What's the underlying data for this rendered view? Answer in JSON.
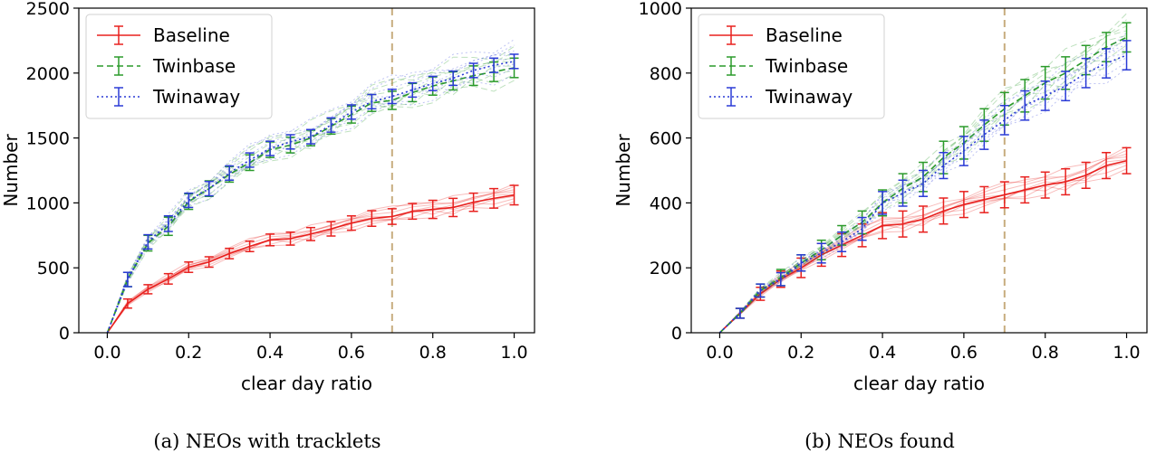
{
  "figure": {
    "captions": [
      "(a) NEOs with tracklets",
      "(b) NEOs found"
    ]
  },
  "colors": {
    "Baseline": "#e8201e",
    "Twinbase": "#2a9a2a",
    "Twinaway": "#2a3ad6",
    "vline": "#c8ad7f"
  },
  "chart_data": [
    {
      "type": "line",
      "xlabel": "clear day ratio",
      "ylabel": "Number",
      "xlim": [
        -0.07,
        1.05
      ],
      "ylim": [
        0,
        2500
      ],
      "xticks": [
        0.0,
        0.2,
        0.4,
        0.6,
        0.8,
        1.0
      ],
      "xtick_labels": [
        "0.0",
        "0.2",
        "0.4",
        "0.6",
        "0.8",
        "1.0"
      ],
      "yticks": [
        0,
        500,
        1000,
        1500,
        2000,
        2500
      ],
      "ytick_labels": [
        "0",
        "500",
        "1000",
        "1500",
        "2000",
        "2500"
      ],
      "grid": false,
      "legend": "top-left",
      "vline_x": 0.7,
      "x": [
        0.0,
        0.05,
        0.1,
        0.15,
        0.2,
        0.25,
        0.3,
        0.35,
        0.4,
        0.45,
        0.5,
        0.55,
        0.6,
        0.65,
        0.7,
        0.75,
        0.8,
        0.85,
        0.9,
        0.95,
        1.0
      ],
      "series": [
        {
          "name": "Baseline",
          "style": "solid",
          "values": [
            0,
            225,
            335,
            415,
            505,
            545,
            610,
            665,
            715,
            725,
            760,
            800,
            845,
            880,
            895,
            935,
            950,
            965,
            1005,
            1035,
            1060
          ],
          "errors": [
            0,
            35,
            35,
            40,
            40,
            40,
            40,
            40,
            45,
            50,
            50,
            55,
            55,
            60,
            60,
            60,
            70,
            70,
            70,
            75,
            75
          ]
        },
        {
          "name": "Twinbase",
          "style": "dashed",
          "values": [
            0,
            410,
            690,
            820,
            1010,
            1110,
            1220,
            1310,
            1410,
            1445,
            1500,
            1590,
            1680,
            1770,
            1790,
            1850,
            1900,
            1940,
            1980,
            2010,
            2040
          ],
          "errors": [
            0,
            55,
            60,
            70,
            60,
            60,
            60,
            60,
            60,
            60,
            60,
            60,
            65,
            65,
            70,
            70,
            70,
            70,
            75,
            75,
            75
          ]
        },
        {
          "name": "Twinaway",
          "style": "dotted",
          "values": [
            0,
            410,
            700,
            840,
            1020,
            1110,
            1230,
            1330,
            1420,
            1470,
            1510,
            1600,
            1700,
            1780,
            1820,
            1870,
            1920,
            1960,
            2020,
            2060,
            2090
          ],
          "errors": [
            0,
            55,
            55,
            60,
            55,
            55,
            55,
            55,
            55,
            55,
            55,
            55,
            55,
            55,
            55,
            55,
            55,
            55,
            55,
            55,
            55
          ]
        }
      ]
    },
    {
      "type": "line",
      "xlabel": "clear day ratio",
      "ylabel": "Number",
      "xlim": [
        -0.07,
        1.05
      ],
      "ylim": [
        0,
        1000
      ],
      "xticks": [
        0.0,
        0.2,
        0.4,
        0.6,
        0.8,
        1.0
      ],
      "xtick_labels": [
        "0.0",
        "0.2",
        "0.4",
        "0.6",
        "0.8",
        "1.0"
      ],
      "yticks": [
        0,
        200,
        400,
        600,
        800,
        1000
      ],
      "ytick_labels": [
        "0",
        "200",
        "400",
        "600",
        "800",
        "1000"
      ],
      "grid": false,
      "legend": "top-left",
      "vline_x": 0.7,
      "x": [
        0.0,
        0.05,
        0.1,
        0.15,
        0.2,
        0.25,
        0.3,
        0.35,
        0.4,
        0.45,
        0.5,
        0.55,
        0.6,
        0.65,
        0.7,
        0.75,
        0.8,
        0.85,
        0.9,
        0.95,
        1.0
      ],
      "series": [
        {
          "name": "Baseline",
          "style": "solid",
          "values": [
            0,
            60,
            120,
            165,
            200,
            240,
            270,
            300,
            330,
            335,
            350,
            375,
            395,
            410,
            425,
            440,
            455,
            465,
            485,
            515,
            530
          ],
          "errors": [
            0,
            15,
            20,
            25,
            30,
            35,
            35,
            35,
            40,
            40,
            40,
            40,
            40,
            40,
            40,
            40,
            40,
            40,
            40,
            40,
            40
          ]
        },
        {
          "name": "Twinbase",
          "style": "dashed",
          "values": [
            0,
            60,
            130,
            170,
            215,
            255,
            300,
            340,
            400,
            445,
            480,
            540,
            585,
            640,
            690,
            730,
            770,
            800,
            840,
            880,
            910
          ],
          "errors": [
            0,
            15,
            20,
            25,
            25,
            30,
            30,
            35,
            40,
            45,
            45,
            50,
            50,
            50,
            50,
            50,
            50,
            50,
            45,
            45,
            45
          ]
        },
        {
          "name": "Twinaway",
          "style": "dotted",
          "values": [
            0,
            60,
            130,
            165,
            215,
            245,
            280,
            320,
            400,
            430,
            460,
            515,
            560,
            610,
            655,
            700,
            730,
            760,
            800,
            830,
            855
          ],
          "errors": [
            0,
            15,
            20,
            20,
            25,
            30,
            30,
            35,
            35,
            40,
            40,
            40,
            45,
            45,
            45,
            45,
            45,
            45,
            45,
            45,
            45
          ]
        }
      ]
    }
  ]
}
